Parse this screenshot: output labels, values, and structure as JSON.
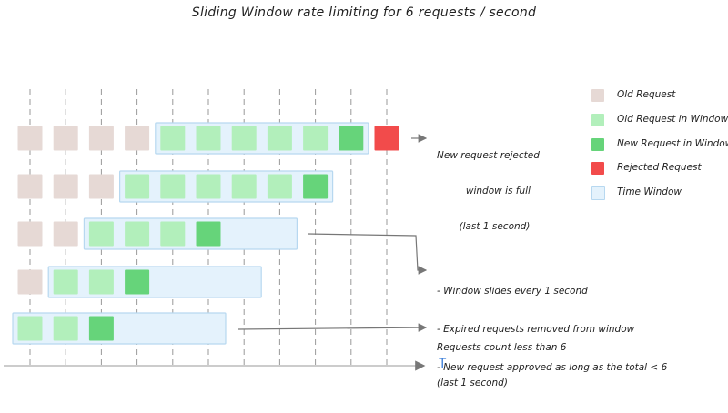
{
  "title": "Sliding Window rate limiting for 6 requests / second",
  "axis_label": "T",
  "colors": {
    "old": "#e6d9d5",
    "in_window": "#b2efbb",
    "new": "#66d47a",
    "rejected": "#f24b4b",
    "window_fill": "#e4f2fc",
    "window_stroke": "#b7d8f0",
    "grid": "#9a9a9a",
    "arrow": "#777777",
    "axis": "#bbbbbb"
  },
  "rows": [
    {
      "old": 4,
      "in_window": 5,
      "new": 1,
      "rejected": 1,
      "window_start": 4
    },
    {
      "old": 3,
      "in_window": 5,
      "new": 1,
      "rejected": 0,
      "window_start": 3
    },
    {
      "old": 2,
      "in_window": 3,
      "new": 1,
      "rejected": 0,
      "window_start": 2
    },
    {
      "old": 1,
      "in_window": 2,
      "new": 1,
      "rejected": 0,
      "window_start": 1
    },
    {
      "old": 0,
      "in_window": 2,
      "new": 1,
      "rejected": 0,
      "window_start": 0
    }
  ],
  "notes": {
    "rejected": [
      "New request rejected",
      "window is full",
      "(last 1 second)"
    ],
    "sliding": [
      "- Window slides every 1 second",
      "- Expired requests removed from window",
      "- New request approved as long as the total < 6"
    ],
    "count": [
      "Requests count less than 6",
      "(last 1 second)"
    ]
  },
  "legend": [
    {
      "label": "Old Request",
      "color": "#e6d9d5"
    },
    {
      "label": "Old Request in Window",
      "color": "#b2efbb"
    },
    {
      "label": "New Request in Window",
      "color": "#66d47a"
    },
    {
      "label": "Rejected Request",
      "color": "#f24b4b"
    },
    {
      "label": "Time Window",
      "color": "#e4f2fc"
    }
  ]
}
